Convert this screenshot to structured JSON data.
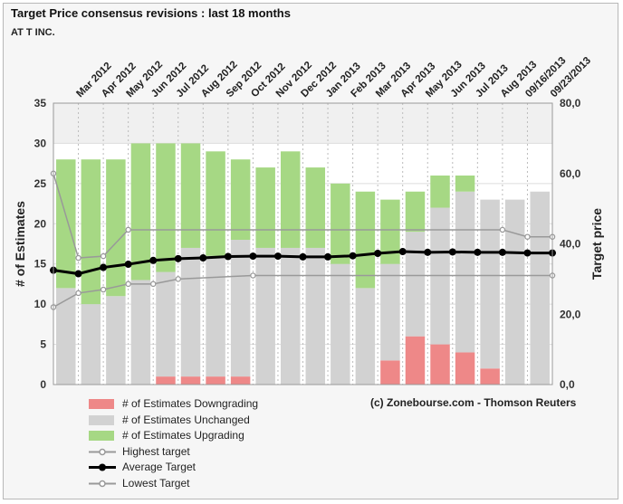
{
  "header": {
    "title": "Target Price consensus revisions : last 18 months",
    "subtitle": "AT T INC."
  },
  "credit": "(c) Zonebourse.com - Thomson Reuters",
  "legend": [
    {
      "label": "# of Estimates Downgrading",
      "kind": "bar",
      "color": "#ee8888"
    },
    {
      "label": "# of Estimates Unchanged",
      "kind": "bar",
      "color": "#d2d2d2"
    },
    {
      "label": "# of Estimates Upgrading",
      "kind": "bar",
      "color": "#a6d884"
    },
    {
      "label": "Highest target",
      "kind": "line",
      "color": "#999999"
    },
    {
      "label": "Average Target",
      "kind": "line-bold",
      "color": "#000000"
    },
    {
      "label": "Lowest Target",
      "kind": "line",
      "color": "#999999"
    }
  ],
  "chart_data": {
    "type": "bar",
    "title": "Target Price consensus revisions : last 18 months",
    "categories": [
      "Mar 2012",
      "Apr 2012",
      "May 2012",
      "Jun 2012",
      "Jul 2012",
      "Aug 2012",
      "Sep 2012",
      "Oct 2012",
      "Nov 2012",
      "Dec 2012",
      "Jan 2013",
      "Feb 2013",
      "Mar 2013",
      "Apr 2013",
      "May 2013",
      "Jun 2013",
      "Jul 2013",
      "Aug 2013",
      "09/16/2013",
      "09/23/2013"
    ],
    "ylabel": "# of Estimates",
    "ylim": [
      0,
      35
    ],
    "yticks": [
      0,
      5,
      10,
      15,
      20,
      25,
      30,
      35
    ],
    "y2label": "Target price",
    "y2lim": [
      0,
      80
    ],
    "y2ticks": [
      "0,0",
      "20,0",
      "40,0",
      "60,0",
      "80,0"
    ],
    "y2tick_values": [
      0,
      20,
      40,
      60,
      80
    ],
    "stacked": true,
    "series": [
      {
        "name": "# of Estimates Downgrading",
        "color": "#ee8888",
        "values": [
          0,
          0,
          0,
          0,
          1,
          1,
          1,
          1,
          0,
          0,
          0,
          0,
          0,
          3,
          6,
          5,
          4,
          2,
          0,
          0
        ]
      },
      {
        "name": "# of Estimates Unchanged",
        "color": "#d2d2d2",
        "values": [
          12,
          10,
          11,
          13,
          13,
          16,
          15,
          17,
          17,
          17,
          17,
          15,
          12,
          12,
          13,
          17,
          20,
          21,
          23,
          24
        ]
      },
      {
        "name": "# of Estimates Upgrading",
        "color": "#a6d884",
        "values": [
          16,
          18,
          17,
          17,
          16,
          13,
          13,
          10,
          10,
          12,
          10,
          10,
          12,
          8,
          5,
          4,
          2,
          0,
          0,
          0
        ]
      }
    ],
    "line_series": [
      {
        "name": "Highest target",
        "color": "#999999",
        "axis": "right",
        "x": [
          0,
          1,
          2,
          3,
          18,
          19,
          20
        ],
        "values": [
          60,
          36,
          36.5,
          44,
          44,
          42,
          42
        ]
      },
      {
        "name": "Average Target",
        "color": "#000000",
        "axis": "right",
        "x": [
          0,
          1,
          2,
          3,
          4,
          5,
          6,
          7,
          8,
          9,
          10,
          11,
          12,
          13,
          14,
          15,
          16,
          17,
          18,
          19,
          20
        ],
        "values": [
          32.5,
          31.5,
          33.3,
          34.2,
          35.3,
          35.8,
          36.0,
          36.4,
          36.5,
          36.5,
          36.3,
          36.3,
          36.6,
          37.3,
          37.8,
          37.6,
          37.7,
          37.6,
          37.6,
          37.4,
          37.4
        ]
      },
      {
        "name": "Lowest Target",
        "color": "#999999",
        "axis": "right",
        "x": [
          0,
          1,
          2,
          3,
          4,
          5,
          8,
          20
        ],
        "values": [
          22,
          26,
          27,
          28.6,
          28.6,
          30,
          31,
          31
        ]
      }
    ]
  }
}
